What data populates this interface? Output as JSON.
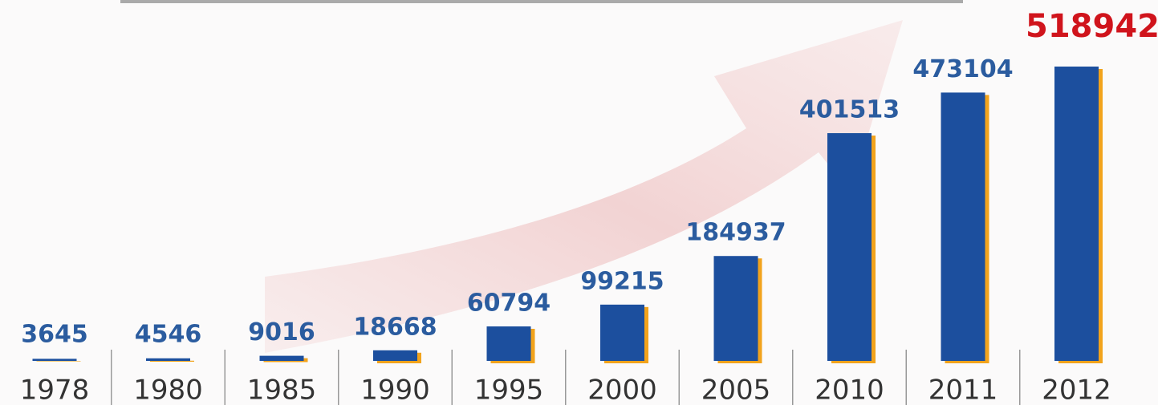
{
  "chart_data": {
    "type": "bar",
    "categories": [
      "1978",
      "1980",
      "1985",
      "1990",
      "1995",
      "2000",
      "2005",
      "2010",
      "2011",
      "2012"
    ],
    "values": [
      3645,
      4546,
      9016,
      18668,
      60794,
      99215,
      184937,
      401513,
      473104,
      518942
    ],
    "color": "#1b4f9e",
    "shadow_color": "#f2a31c",
    "value_label_colors": [
      "#2b5c9f",
      "#2b5c9f",
      "#2b5c9f",
      "#2b5c9f",
      "#2b5c9f",
      "#2b5c9f",
      "#2b5c9f",
      "#2b5c9f",
      "#2b5c9f",
      "#d0141c"
    ]
  }
}
